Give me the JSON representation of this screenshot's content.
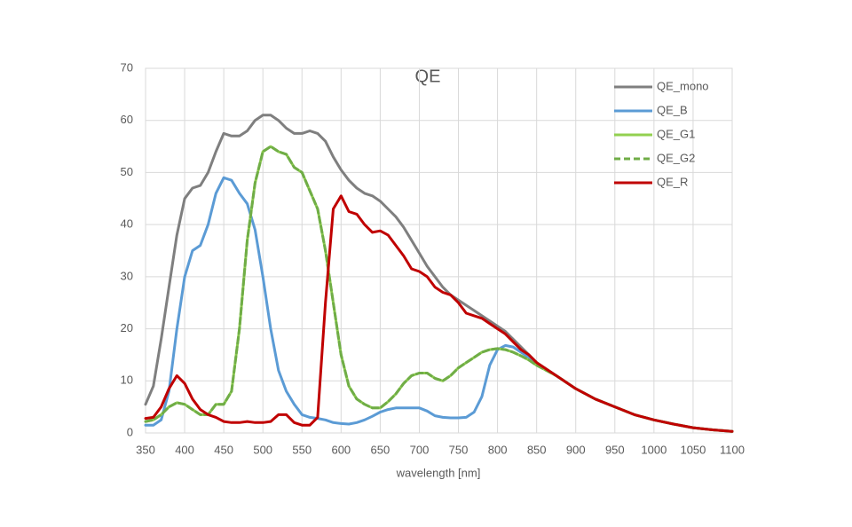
{
  "chart_data": {
    "type": "line",
    "title": "QE",
    "x_label": "wavelength [nm]",
    "x": [
      350,
      360,
      370,
      380,
      390,
      400,
      410,
      420,
      430,
      440,
      450,
      460,
      470,
      480,
      490,
      500,
      510,
      520,
      530,
      540,
      550,
      560,
      570,
      580,
      590,
      600,
      610,
      620,
      630,
      640,
      650,
      660,
      670,
      680,
      690,
      700,
      710,
      720,
      730,
      740,
      750,
      760,
      770,
      780,
      790,
      800,
      810,
      820,
      830,
      840,
      850,
      875,
      900,
      925,
      950,
      975,
      1000,
      1025,
      1050,
      1075,
      1100
    ],
    "series": [
      {
        "name": "QE_mono",
        "color": "#7f7f7f",
        "dash": false,
        "values": [
          5.5,
          9,
          18,
          28,
          38,
          45,
          47,
          47.5,
          50,
          54,
          57.5,
          57,
          57,
          58,
          60,
          61,
          61,
          60,
          58.5,
          57.5,
          57.5,
          58,
          57.5,
          56,
          53,
          50.5,
          48.5,
          47,
          46,
          45.5,
          44.5,
          43,
          41.5,
          39.5,
          37,
          34.5,
          32,
          30,
          28,
          26.5,
          25.5,
          24.5,
          23.5,
          22.5,
          21.5,
          20.5,
          19.5,
          18,
          16.5,
          15,
          13.5,
          11,
          8.5,
          6.5,
          5,
          3.5,
          2.5,
          1.7,
          1,
          0.6,
          0.3
        ]
      },
      {
        "name": "QE_B",
        "color": "#5b9bd5",
        "dash": false,
        "values": [
          1.5,
          1.5,
          2.5,
          8,
          20,
          30,
          35,
          36,
          40,
          46,
          49,
          48.5,
          46,
          44,
          39,
          30,
          20,
          12,
          8,
          5.5,
          3.5,
          3,
          2.8,
          2.5,
          2,
          1.8,
          1.7,
          2,
          2.5,
          3.2,
          4,
          4.5,
          4.8,
          4.8,
          4.8,
          4.8,
          4.2,
          3.3,
          3,
          2.9,
          2.9,
          3,
          4,
          7,
          13,
          16,
          16.8,
          16.5,
          15.5,
          14.5,
          13.3,
          11,
          8.5,
          6.5,
          5,
          3.5,
          2.5,
          1.7,
          1,
          0.6,
          0.3
        ]
      },
      {
        "name": "QE_G1",
        "color": "#92d050",
        "dash": false,
        "values": [
          2.2,
          2.5,
          3.5,
          5,
          5.8,
          5.5,
          4.5,
          3.5,
          3.5,
          5.5,
          5.5,
          8,
          20,
          37,
          48,
          54,
          55,
          54,
          53.5,
          51,
          50,
          46.5,
          43,
          35,
          25,
          15,
          9,
          6.5,
          5.5,
          4.8,
          4.8,
          6,
          7.5,
          9.5,
          11,
          11.5,
          11.5,
          10.5,
          10,
          11,
          12.5,
          13.5,
          14.5,
          15.5,
          16,
          16.2,
          16,
          15.5,
          14.8,
          14,
          13,
          11,
          8.5,
          6.5,
          5,
          3.5,
          2.5,
          1.7,
          1,
          0.6,
          0.3
        ]
      },
      {
        "name": "QE_G2",
        "color": "#70ad47",
        "dash": true,
        "values": [
          2.2,
          2.5,
          3.5,
          5,
          5.8,
          5.5,
          4.5,
          3.5,
          3.5,
          5.5,
          5.5,
          8,
          20,
          37,
          48,
          54,
          55,
          54,
          53.5,
          51,
          50,
          46.5,
          43,
          35,
          25,
          15,
          9,
          6.5,
          5.5,
          4.8,
          4.8,
          6,
          7.5,
          9.5,
          11,
          11.5,
          11.5,
          10.5,
          10,
          11,
          12.5,
          13.5,
          14.5,
          15.5,
          16,
          16.2,
          16,
          15.5,
          14.8,
          14,
          13,
          11,
          8.5,
          6.5,
          5,
          3.5,
          2.5,
          1.7,
          1,
          0.6,
          0.3
        ]
      },
      {
        "name": "QE_R",
        "color": "#c00000",
        "dash": false,
        "values": [
          2.8,
          3,
          5,
          8.5,
          11,
          9.5,
          6.5,
          4.5,
          3.5,
          3,
          2.2,
          2,
          2,
          2.2,
          2,
          2,
          2.2,
          3.5,
          3.5,
          2,
          1.5,
          1.5,
          3,
          25,
          43,
          45.5,
          42.5,
          42,
          40,
          38.5,
          38.8,
          38,
          36,
          34,
          31.5,
          31,
          30,
          28,
          27,
          26.5,
          25,
          23,
          22.5,
          22,
          21,
          20,
          19,
          17.5,
          16,
          15,
          13.5,
          11,
          8.5,
          6.5,
          5,
          3.5,
          2.5,
          1.7,
          1,
          0.6,
          0.3
        ]
      }
    ],
    "xlim": [
      350,
      1100
    ],
    "xticks": [
      350,
      400,
      450,
      500,
      550,
      600,
      650,
      700,
      750,
      800,
      850,
      900,
      950,
      1000,
      1050,
      1100
    ],
    "ylim": [
      0,
      70
    ],
    "yticks": [
      0,
      10,
      20,
      30,
      40,
      50,
      60,
      70
    ],
    "grid": true,
    "legend": "top-right"
  }
}
